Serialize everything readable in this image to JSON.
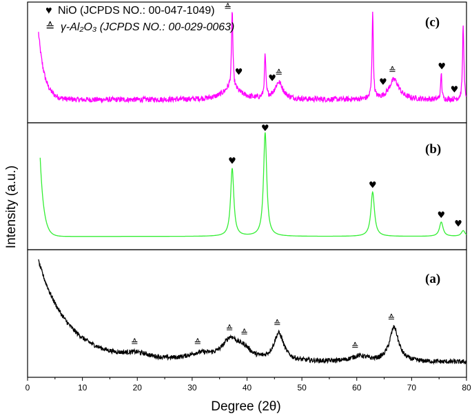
{
  "chart_data": {
    "type": "line",
    "xlabel": "Degree (2θ)",
    "ylabel": "Intensity (a.u.)",
    "xlim": [
      0,
      80
    ],
    "xticks": [
      "0",
      "10",
      "20",
      "30",
      "40",
      "50",
      "60",
      "70",
      "80"
    ],
    "grid": false,
    "legend": {
      "placement": "top-left",
      "entries": [
        {
          "symbol": "♥",
          "text": "NiO (JCPDS NO.: 00-047-1049)"
        },
        {
          "symbol": "≙",
          "text": "γ-Al₂O₃ (JCPDS NO.: 00-029-0063)"
        }
      ]
    },
    "panels": [
      {
        "label": "(c)",
        "color": "#ff00ff",
        "x_range": [
          2,
          80
        ],
        "baseline": 0.3,
        "noise": 0.06,
        "background": {
          "amplitude": 1.5,
          "decay": 0.9
        },
        "peaks": [
          {
            "x": 37.2,
            "height": 0.28,
            "width": 1.8
          },
          {
            "x": 37.3,
            "height": 1.75,
            "width": 0.14
          },
          {
            "x": 43.3,
            "height": 0.95,
            "width": 0.15
          },
          {
            "x": 45.8,
            "height": 0.38,
            "width": 0.9
          },
          {
            "x": 62.9,
            "height": 1.95,
            "width": 0.14
          },
          {
            "x": 66.8,
            "height": 0.45,
            "width": 1.1
          },
          {
            "x": 75.4,
            "height": 0.6,
            "width": 0.12
          },
          {
            "x": 79.4,
            "height": 1.7,
            "width": 0.14
          }
        ],
        "markers": [
          {
            "x": 36.5,
            "symbol": "≙"
          },
          {
            "x": 38.5,
            "symbol": "♥"
          },
          {
            "x": 44.6,
            "symbol": "♥"
          },
          {
            "x": 45.8,
            "symbol": "≙"
          },
          {
            "x": 64.8,
            "symbol": "♥"
          },
          {
            "x": 66.5,
            "symbol": "≙"
          },
          {
            "x": 75.5,
            "symbol": "♥"
          },
          {
            "x": 77.8,
            "symbol": "♥"
          }
        ]
      },
      {
        "label": "(b)",
        "color": "#33ee33",
        "x_range": [
          2.3,
          80
        ],
        "baseline": 0.05,
        "noise": 0.0,
        "background": {
          "amplitude": 1.1,
          "decay": 1.5
        },
        "peaks": [
          {
            "x": 37.3,
            "height": 0.95,
            "width": 0.35
          },
          {
            "x": 43.3,
            "height": 1.45,
            "width": 0.35
          },
          {
            "x": 62.9,
            "height": 0.62,
            "width": 0.4
          },
          {
            "x": 75.4,
            "height": 0.2,
            "width": 0.4
          },
          {
            "x": 79.4,
            "height": 0.08,
            "width": 0.4
          }
        ],
        "markers": [
          {
            "x": 37.3,
            "symbol": "♥"
          },
          {
            "x": 43.3,
            "symbol": "♥"
          },
          {
            "x": 62.9,
            "symbol": "♥"
          },
          {
            "x": 75.4,
            "symbol": "♥"
          },
          {
            "x": 78.5,
            "symbol": "♥"
          }
        ]
      },
      {
        "label": "(a)",
        "color": "#000000",
        "x_range": [
          2,
          80
        ],
        "baseline": 0.12,
        "noise": 0.05,
        "background": {
          "amplitude": 2.2,
          "decay": 0.18
        },
        "peaks": [
          {
            "x": 20,
            "height": 0.12,
            "width": 3
          },
          {
            "x": 31.5,
            "height": 0.15,
            "width": 3
          },
          {
            "x": 37,
            "height": 0.45,
            "width": 1.8
          },
          {
            "x": 39.5,
            "height": 0.2,
            "width": 1.5
          },
          {
            "x": 45.8,
            "height": 0.6,
            "width": 1.1
          },
          {
            "x": 60.5,
            "height": 0.12,
            "width": 1.8
          },
          {
            "x": 66.8,
            "height": 0.75,
            "width": 1.0
          }
        ],
        "markers": [
          {
            "x": 19.5,
            "symbol": "≙"
          },
          {
            "x": 31.0,
            "symbol": "≙"
          },
          {
            "x": 36.8,
            "symbol": "≙"
          },
          {
            "x": 39.5,
            "symbol": "≙"
          },
          {
            "x": 45.5,
            "symbol": "≙"
          },
          {
            "x": 59.7,
            "symbol": "≙"
          },
          {
            "x": 66.3,
            "symbol": "≙"
          }
        ]
      }
    ]
  }
}
